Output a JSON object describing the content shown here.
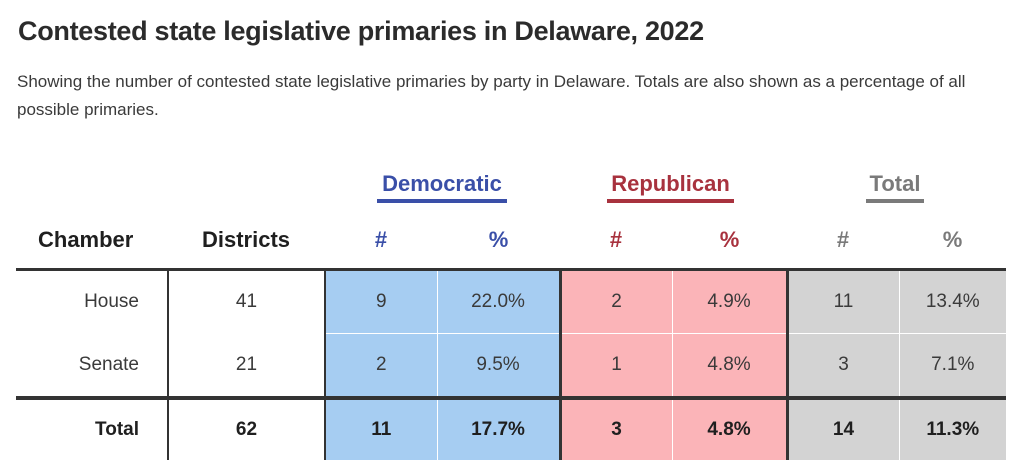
{
  "title": "Contested state legislative primaries in Delaware, 2022",
  "subtitle": "Showing the number of contested state legislative primaries by party in Delaware. Totals are also shown as a percentage of all possible primaries.",
  "party_headers": {
    "democratic": "Democratic",
    "republican": "Republican",
    "total": "Total"
  },
  "column_headers": {
    "chamber": "Chamber",
    "districts": "Districts",
    "dem_count": "#",
    "dem_pct": "%",
    "rep_count": "#",
    "rep_pct": "%",
    "tot_count": "#",
    "tot_pct": "%"
  },
  "colors": {
    "democratic": "#3a4fa8",
    "democratic_fill": "#a6cdf2",
    "republican": "#a8323e",
    "republican_fill": "#fbb4b8",
    "total": "#7a7a7a",
    "total_fill": "#d3d3d3"
  },
  "rows": [
    {
      "chamber": "House",
      "districts": "41",
      "dem_count": "9",
      "dem_pct": "22.0%",
      "rep_count": "2",
      "rep_pct": "4.9%",
      "tot_count": "11",
      "tot_pct": "13.4%"
    },
    {
      "chamber": "Senate",
      "districts": "21",
      "dem_count": "2",
      "dem_pct": "9.5%",
      "rep_count": "1",
      "rep_pct": "4.8%",
      "tot_count": "3",
      "tot_pct": "7.1%"
    }
  ],
  "total_row": {
    "chamber": "Total",
    "districts": "62",
    "dem_count": "11",
    "dem_pct": "17.7%",
    "rep_count": "3",
    "rep_pct": "4.8%",
    "tot_count": "14",
    "tot_pct": "11.3%"
  }
}
